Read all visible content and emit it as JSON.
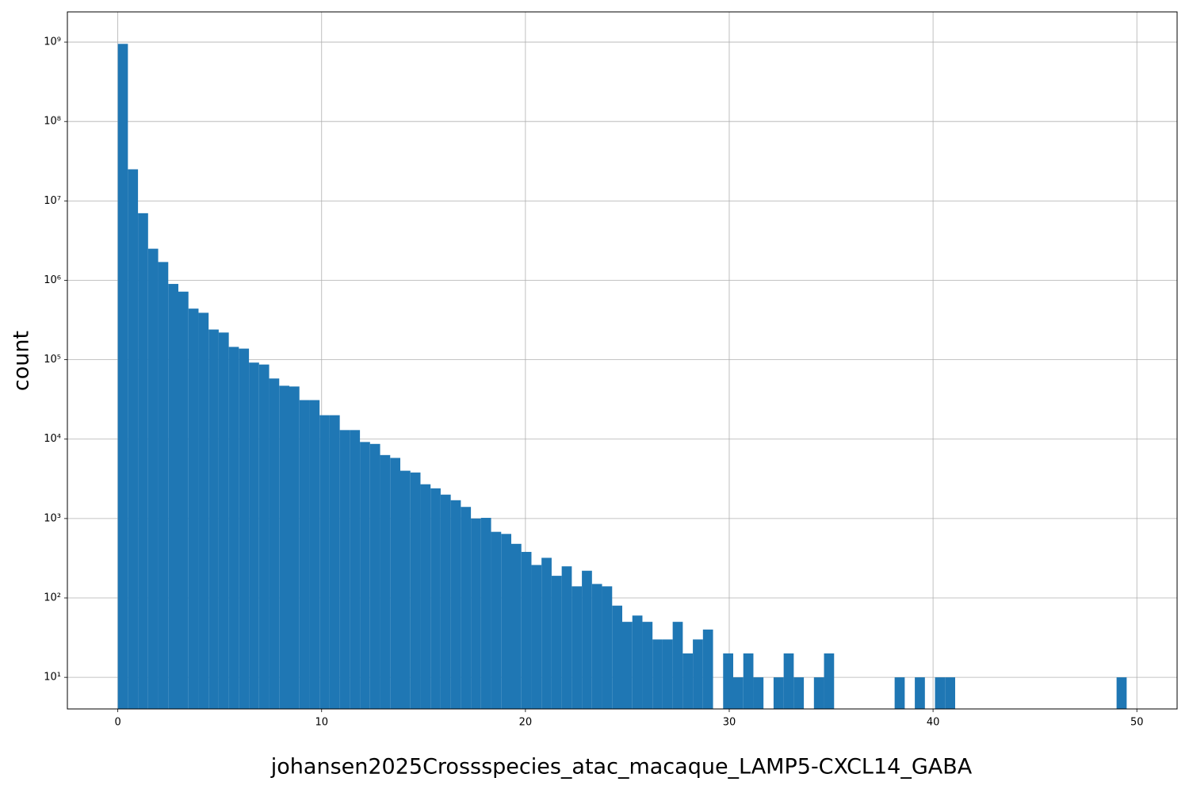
{
  "chart_data": {
    "type": "histogram",
    "xlabel": "johansen2025Crossspecies_atac_macaque_LAMP5-CXCL14_GABA",
    "ylabel": "count",
    "color": "#1f77b4",
    "log_y": true,
    "grid": true,
    "bins": [
      0,
      0.495,
      0.99,
      1.485,
      1.98,
      2.475,
      2.97,
      3.465,
      3.96,
      4.455,
      4.95,
      5.445,
      5.94,
      6.435,
      6.93,
      7.425,
      7.92,
      8.415,
      8.91,
      9.405,
      9.9,
      10.395,
      10.89,
      11.385,
      11.88,
      12.375,
      12.87,
      13.365,
      13.86,
      14.355,
      14.85,
      15.345,
      15.84,
      16.335,
      16.83,
      17.325,
      17.82,
      18.315,
      18.81,
      19.305,
      19.8,
      20.295,
      20.79,
      21.285,
      21.78,
      22.275,
      22.77,
      23.265,
      23.76,
      24.255,
      24.75,
      25.245,
      25.74,
      26.235,
      26.73,
      27.225,
      27.72,
      28.215,
      28.71,
      29.205,
      29.7,
      30.195,
      30.69,
      31.185,
      31.68,
      32.175,
      32.67,
      33.165,
      33.66,
      34.155,
      34.65,
      35.145,
      35.64,
      36.135,
      36.63,
      37.125,
      37.62,
      38.115,
      38.61,
      39.105,
      39.6,
      40.095,
      40.59,
      41.085,
      41.58,
      42.075,
      42.57,
      43.065,
      43.56,
      44.055,
      44.55,
      45.045,
      45.54,
      46.035,
      46.53,
      47.025,
      47.52,
      48.015,
      48.51,
      49.005,
      49.5
    ],
    "values": [
      950000000,
      25000000,
      7000000,
      2500000,
      1700000,
      900000,
      720000,
      440000,
      390000,
      240000,
      220000,
      145000,
      138000,
      92000,
      87000,
      58000,
      47000,
      46000,
      31000,
      31000,
      20000,
      20000,
      13000,
      13000,
      9200,
      8700,
      6300,
      5800,
      4000,
      3800,
      2700,
      2400,
      2000,
      1700,
      1400,
      1000,
      1020,
      680,
      640,
      480,
      380,
      260,
      320,
      190,
      250,
      140,
      220,
      150,
      140,
      80,
      50,
      60,
      50,
      30,
      30,
      50,
      20,
      30,
      40,
      0,
      20,
      10,
      20,
      10,
      0,
      10,
      20,
      10,
      0,
      10,
      20,
      0,
      0,
      0,
      0,
      0,
      0,
      10,
      0,
      10,
      0,
      10,
      10,
      0,
      0,
      0,
      0,
      0,
      0,
      0,
      0,
      0,
      0,
      0,
      0,
      0,
      0,
      0,
      0,
      10
    ],
    "xlim": [
      -2.475,
      51.975
    ],
    "xticks": [
      0,
      10,
      20,
      30,
      40,
      50
    ],
    "ylim": [
      4,
      2400000000
    ],
    "yticks": [
      {
        "value": 10,
        "label": "10¹"
      },
      {
        "value": 100,
        "label": "10²"
      },
      {
        "value": 1000,
        "label": "10³"
      },
      {
        "value": 10000,
        "label": "10⁴"
      },
      {
        "value": 100000,
        "label": "10⁵"
      },
      {
        "value": 1000000,
        "label": "10⁶"
      },
      {
        "value": 10000000,
        "label": "10⁷"
      },
      {
        "value": 100000000,
        "label": "10⁸"
      },
      {
        "value": 1000000000,
        "label": "10⁹"
      }
    ]
  }
}
